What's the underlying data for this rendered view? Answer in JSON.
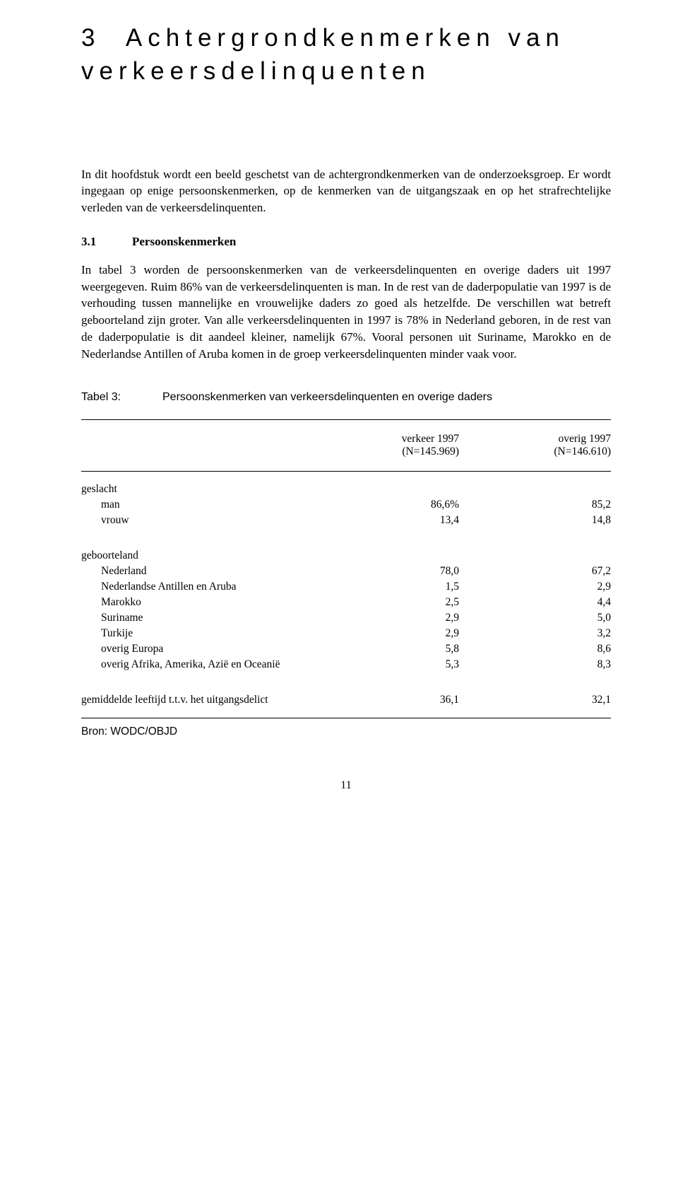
{
  "chapter": {
    "number": "3",
    "title_line1": "Achtergrondkenmerken van",
    "title_line2": "verkeersdelinquenten"
  },
  "intro": "In dit hoofdstuk wordt een beeld geschetst van de achtergrondkenmerken van de onderzoeksgroep. Er wordt ingegaan op enige persoonskenmerken, op de kenmerken van de uitgangszaak en op het strafrechtelijke verleden van de verkeersdelinquenten.",
  "section": {
    "number": "3.1",
    "title": "Persoonskenmerken"
  },
  "body": "In tabel 3 worden de persoonskenmerken van de verkeersdelinquenten en overige daders uit 1997 weergegeven. Ruim 86% van de verkeersdelinquenten is man. In de rest van de daderpopulatie van 1997 is de verhouding tussen mannelijke en vrouwelijke daders zo goed als hetzelfde. De verschillen wat betreft geboorteland zijn groter. Van alle verkeersdelinquenten in 1997 is 78% in Nederland geboren, in de rest van de daderpopulatie is dit aandeel kleiner, namelijk 67%. Vooral personen uit Suriname, Marokko en de Nederlandse Antillen of Aruba komen in de groep verkeersdelinquenten minder vaak voor.",
  "table": {
    "label": "Tabel 3:",
    "caption": "Persoonskenmerken van verkeersdelinquenten en overige daders",
    "col1_h1": "verkeer 1997",
    "col1_h2": "(N=145.969)",
    "col2_h1": "overig 1997",
    "col2_h2": "(N=146.610)",
    "g1": "geslacht",
    "g1r1": "man",
    "g1r1v1": "86,6%",
    "g1r1v2": "85,2",
    "g1r2": "vrouw",
    "g1r2v1": "13,4",
    "g1r2v2": "14,8",
    "g2": "geboorteland",
    "g2r1": "Nederland",
    "g2r1v1": "78,0",
    "g2r1v2": "67,2",
    "g2r2": "Nederlandse Antillen en Aruba",
    "g2r2v1": "1,5",
    "g2r2v2": "2,9",
    "g2r3": "Marokko",
    "g2r3v1": "2,5",
    "g2r3v2": "4,4",
    "g2r4": "Suriname",
    "g2r4v1": "2,9",
    "g2r4v2": "5,0",
    "g2r5": "Turkije",
    "g2r5v1": "2,9",
    "g2r5v2": "3,2",
    "g2r6": "overig Europa",
    "g2r6v1": "5,8",
    "g2r6v2": "8,6",
    "g2r7": "overig Afrika, Amerika, Azië en Oceanië",
    "g2r7v1": "5,3",
    "g2r7v2": "8,3",
    "g3": "gemiddelde leeftijd t.t.v. het uitgangsdelict",
    "g3v1": "36,1",
    "g3v2": "32,1",
    "source": "Bron: WODC/OBJD"
  },
  "page_number": "11"
}
